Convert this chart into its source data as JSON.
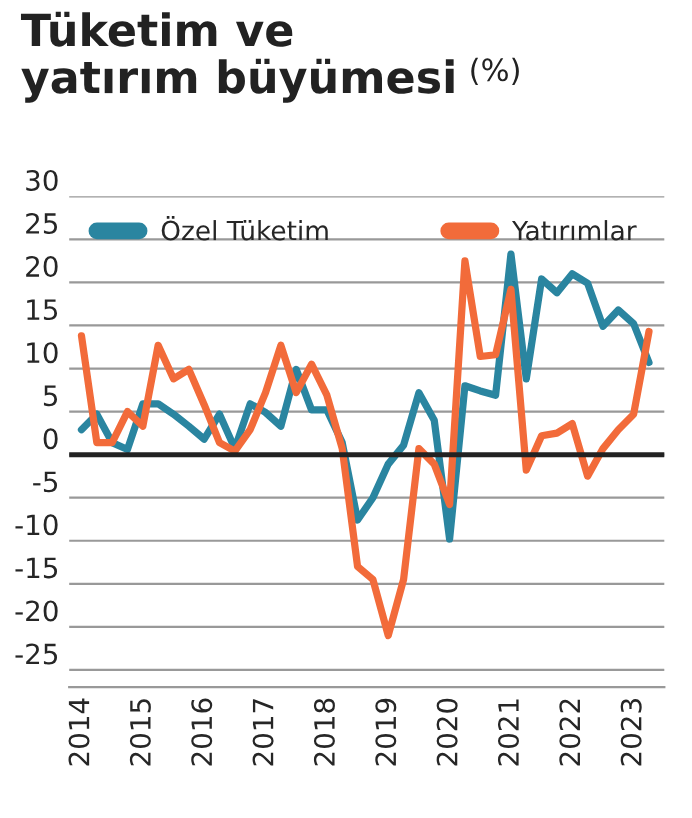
{
  "chart_data": {
    "type": "line",
    "title": "Tüketim ve\nyatırım büyümesi",
    "subtitle": "(%)",
    "x": [
      2014.0,
      2014.25,
      2014.5,
      2014.75,
      2015.0,
      2015.25,
      2015.5,
      2015.75,
      2016.0,
      2016.25,
      2016.5,
      2016.75,
      2017.0,
      2017.25,
      2017.5,
      2017.75,
      2018.0,
      2018.25,
      2018.5,
      2018.75,
      2019.0,
      2019.25,
      2019.5,
      2019.75,
      2020.0,
      2020.25,
      2020.5,
      2020.75,
      2021.0,
      2021.25,
      2021.5,
      2021.75,
      2022.0,
      2022.25,
      2022.5,
      2022.75,
      2023.0,
      2023.25
    ],
    "series": [
      {
        "name": "Özel Tüketim",
        "color": "#2a85a0",
        "values": [
          2.9,
          4.7,
          1.4,
          0.6,
          5.9,
          5.9,
          4.7,
          3.3,
          1.8,
          4.7,
          0.7,
          5.9,
          4.9,
          3.3,
          9.9,
          5.2,
          5.2,
          1.4,
          -7.6,
          -5,
          -1.1,
          1.1,
          7.2,
          4,
          -9.8,
          8,
          7.4,
          6.9,
          23.3,
          8.8,
          20.4,
          18.8,
          21,
          19.9,
          14.9,
          16.8,
          15.2,
          10.7
        ]
      },
      {
        "name": "Yatırımlar",
        "color": "#f26b3a",
        "values": [
          13.8,
          1.4,
          1.4,
          5,
          3.3,
          12.7,
          8.8,
          9.9,
          5.8,
          1.4,
          0.4,
          2.9,
          7.2,
          12.7,
          7.2,
          10.5,
          6.9,
          0.7,
          -13,
          -14.5,
          -21,
          -14.5,
          0.7,
          -1.1,
          -5.8,
          22.5,
          11.4,
          11.6,
          19.2,
          -1.8,
          2.2,
          2.5,
          3.6,
          -2.5,
          0.7,
          2.9,
          4.7,
          14.3
        ]
      }
    ],
    "xlim": [
      2013.8,
      2023.5
    ],
    "xticks": [
      2014,
      2015,
      2016,
      2017,
      2018,
      2019,
      2020,
      2021,
      2022,
      2023
    ],
    "ylim": [
      -27,
      30
    ],
    "yticks": [
      -25,
      -20,
      -15,
      -10,
      -5,
      0,
      5,
      10,
      15,
      20,
      25,
      30
    ],
    "ref_lines": [
      {
        "axis": "y",
        "value": 0,
        "color": "#222222"
      }
    ],
    "grid": "y",
    "legend": "top",
    "marker": "none",
    "line_style": "solid"
  }
}
